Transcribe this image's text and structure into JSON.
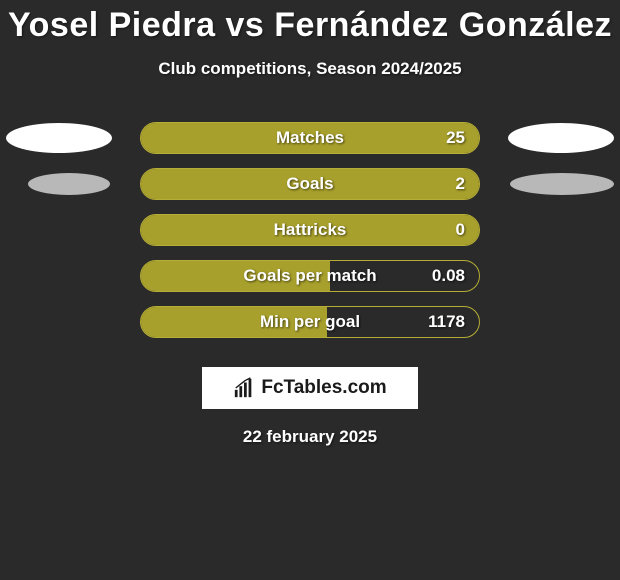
{
  "title": "Yosel Piedra vs Fernández González",
  "subtitle": "Club competitions, Season 2024/2025",
  "date": "22 february 2025",
  "logo_text": "FcTables.com",
  "colors": {
    "background": "#2a2a2a",
    "bar_fill": "#a8a02c",
    "bar_border": "#b5ad35",
    "oval_white": "#ffffff",
    "oval_gray": "#b8b8b8",
    "text": "#ffffff",
    "logo_bg": "#ffffff",
    "logo_text": "#1a1a1a"
  },
  "rows": [
    {
      "label": "Matches",
      "value": "25",
      "fill_pct": 100,
      "oval_left": "#ffffff",
      "oval_right": "#ffffff",
      "oval_left_h": 30,
      "oval_right_h": 30
    },
    {
      "label": "Goals",
      "value": "2",
      "fill_pct": 100,
      "oval_left": "#b8b8b8",
      "oval_right": "#b8b8b8",
      "oval_left_h": 22,
      "oval_right_h": 22,
      "oval_left_w": 82,
      "oval_right_w": 104,
      "oval_left_off": 28
    },
    {
      "label": "Hattricks",
      "value": "0",
      "fill_pct": 100,
      "no_ovals": true
    },
    {
      "label": "Goals per match",
      "value": "0.08",
      "fill_pct": 56,
      "no_ovals": true
    },
    {
      "label": "Min per goal",
      "value": "1178",
      "fill_pct": 55,
      "no_ovals": true
    }
  ]
}
